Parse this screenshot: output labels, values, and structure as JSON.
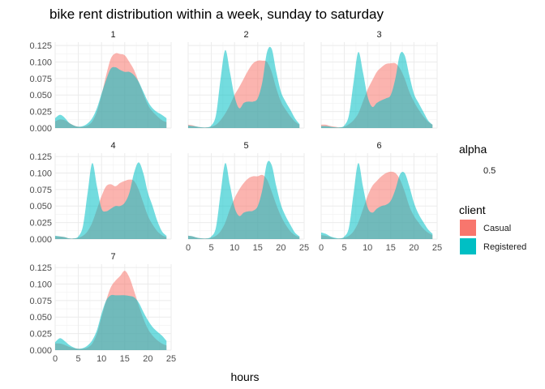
{
  "chart_data": {
    "type": "area",
    "title": "bike rent distribution within a week, sunday to saturday",
    "xlabel": "hours",
    "ylabel": "",
    "xlim": [
      0,
      24
    ],
    "ylim": [
      0,
      0.13
    ],
    "x_ticks": [
      "0",
      "5",
      "10",
      "15",
      "20",
      "25"
    ],
    "y_ticks": [
      "0.000",
      "0.025",
      "0.050",
      "0.075",
      "0.100",
      "0.125"
    ],
    "grid": true,
    "legend_position": "right",
    "legend": {
      "alpha_title": "alpha",
      "alpha_value": "0.5",
      "client_title": "client",
      "items": [
        {
          "name": "Casual",
          "color": "#F8766D"
        },
        {
          "name": "Registered",
          "color": "#00BFC4"
        }
      ]
    },
    "x": [
      0,
      1,
      2,
      3,
      4,
      5,
      6,
      7,
      8,
      9,
      10,
      11,
      12,
      13,
      14,
      15,
      16,
      17,
      18,
      19,
      20,
      21,
      22,
      23,
      24
    ],
    "panels": [
      {
        "label": "1",
        "series": [
          {
            "name": "Casual",
            "values": [
              0.01,
              0.013,
              0.012,
              0.008,
              0.004,
              0.002,
              0.002,
              0.004,
              0.01,
              0.025,
              0.05,
              0.08,
              0.105,
              0.113,
              0.112,
              0.11,
              0.1,
              0.088,
              0.07,
              0.052,
              0.035,
              0.025,
              0.018,
              0.012,
              0.009
            ]
          },
          {
            "name": "Registered",
            "values": [
              0.015,
              0.02,
              0.016,
              0.008,
              0.004,
              0.002,
              0.003,
              0.007,
              0.015,
              0.03,
              0.052,
              0.073,
              0.09,
              0.092,
              0.088,
              0.085,
              0.085,
              0.08,
              0.07,
              0.055,
              0.04,
              0.03,
              0.024,
              0.02,
              0.015
            ]
          }
        ]
      },
      {
        "label": "2",
        "series": [
          {
            "name": "Casual",
            "values": [
              0.005,
              0.004,
              0.002,
              0.001,
              0.001,
              0.002,
              0.005,
              0.012,
              0.022,
              0.035,
              0.05,
              0.062,
              0.075,
              0.088,
              0.098,
              0.102,
              0.102,
              0.1,
              0.085,
              0.06,
              0.04,
              0.028,
              0.018,
              0.01,
              0.005
            ]
          },
          {
            "name": "Registered",
            "values": [
              0.004,
              0.003,
              0.002,
              0.001,
              0.001,
              0.004,
              0.02,
              0.075,
              0.118,
              0.085,
              0.048,
              0.03,
              0.038,
              0.04,
              0.04,
              0.045,
              0.07,
              0.115,
              0.12,
              0.085,
              0.055,
              0.04,
              0.028,
              0.015,
              0.006
            ]
          }
        ]
      },
      {
        "label": "3",
        "series": [
          {
            "name": "Casual",
            "values": [
              0.005,
              0.005,
              0.003,
              0.002,
              0.001,
              0.002,
              0.006,
              0.012,
              0.022,
              0.04,
              0.058,
              0.072,
              0.085,
              0.092,
              0.097,
              0.098,
              0.098,
              0.09,
              0.075,
              0.055,
              0.04,
              0.028,
              0.018,
              0.01,
              0.005
            ]
          },
          {
            "name": "Registered",
            "values": [
              0.003,
              0.003,
              0.002,
              0.001,
              0.001,
              0.004,
              0.02,
              0.07,
              0.115,
              0.085,
              0.048,
              0.032,
              0.038,
              0.042,
              0.045,
              0.05,
              0.075,
              0.112,
              0.11,
              0.08,
              0.052,
              0.038,
              0.025,
              0.012,
              0.005
            ]
          }
        ]
      },
      {
        "label": "4",
        "series": [
          {
            "name": "Casual",
            "values": [
              0.004,
              0.004,
              0.003,
              0.001,
              0.001,
              0.002,
              0.005,
              0.012,
              0.025,
              0.045,
              0.065,
              0.08,
              0.083,
              0.08,
              0.085,
              0.088,
              0.09,
              0.088,
              0.075,
              0.055,
              0.035,
              0.022,
              0.012,
              0.006,
              0.003
            ]
          },
          {
            "name": "Registered",
            "values": [
              0.005,
              0.004,
              0.003,
              0.001,
              0.001,
              0.004,
              0.02,
              0.07,
              0.115,
              0.08,
              0.046,
              0.042,
              0.046,
              0.05,
              0.05,
              0.055,
              0.07,
              0.1,
              0.116,
              0.1,
              0.07,
              0.05,
              0.028,
              0.012,
              0.005
            ]
          }
        ]
      },
      {
        "label": "5",
        "series": [
          {
            "name": "Casual",
            "values": [
              0.005,
              0.004,
              0.002,
              0.001,
              0.001,
              0.002,
              0.005,
              0.012,
              0.025,
              0.045,
              0.062,
              0.075,
              0.085,
              0.092,
              0.095,
              0.095,
              0.097,
              0.09,
              0.072,
              0.052,
              0.035,
              0.022,
              0.012,
              0.006,
              0.003
            ]
          },
          {
            "name": "Registered",
            "values": [
              0.005,
              0.004,
              0.002,
              0.001,
              0.001,
              0.004,
              0.018,
              0.07,
              0.115,
              0.082,
              0.048,
              0.035,
              0.04,
              0.042,
              0.043,
              0.05,
              0.075,
              0.115,
              0.112,
              0.08,
              0.052,
              0.035,
              0.022,
              0.01,
              0.004
            ]
          }
        ]
      },
      {
        "label": "6",
        "series": [
          {
            "name": "Casual",
            "values": [
              0.006,
              0.005,
              0.003,
              0.001,
              0.001,
              0.002,
              0.005,
              0.012,
              0.025,
              0.045,
              0.065,
              0.08,
              0.088,
              0.095,
              0.1,
              0.102,
              0.1,
              0.09,
              0.072,
              0.05,
              0.035,
              0.025,
              0.016,
              0.01,
              0.006
            ]
          },
          {
            "name": "Registered",
            "values": [
              0.01,
              0.008,
              0.004,
              0.002,
              0.001,
              0.004,
              0.018,
              0.07,
              0.115,
              0.08,
              0.048,
              0.04,
              0.046,
              0.05,
              0.052,
              0.058,
              0.075,
              0.098,
              0.1,
              0.08,
              0.055,
              0.038,
              0.026,
              0.015,
              0.008
            ]
          }
        ]
      },
      {
        "label": "7",
        "series": [
          {
            "name": "Casual",
            "values": [
              0.01,
              0.01,
              0.008,
              0.005,
              0.003,
              0.002,
              0.002,
              0.004,
              0.01,
              0.025,
              0.05,
              0.075,
              0.095,
              0.105,
              0.112,
              0.12,
              0.11,
              0.09,
              0.068,
              0.048,
              0.032,
              0.022,
              0.015,
              0.01,
              0.007
            ]
          },
          {
            "name": "Registered",
            "values": [
              0.012,
              0.018,
              0.014,
              0.008,
              0.004,
              0.002,
              0.003,
              0.007,
              0.015,
              0.03,
              0.055,
              0.075,
              0.083,
              0.083,
              0.083,
              0.083,
              0.082,
              0.08,
              0.072,
              0.058,
              0.045,
              0.035,
              0.028,
              0.022,
              0.014
            ]
          }
        ]
      }
    ]
  }
}
